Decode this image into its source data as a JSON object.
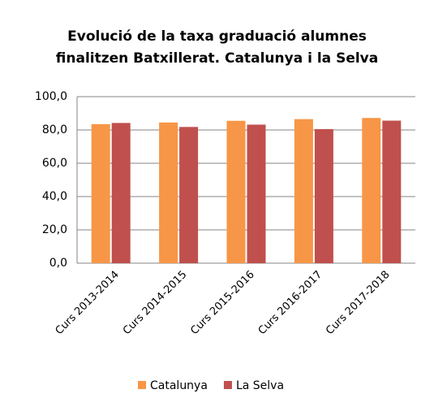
{
  "chart_data": {
    "type": "bar",
    "title": "Evolució de la taxa graduació alumnes finalitzen Batxillerat. Catalunya i la Selva",
    "categories": [
      "Curs 2013-2014",
      "Curs 2014-2015",
      "Curs 2015-2016",
      "Curs 2016-2017",
      "Curs 2017-2018"
    ],
    "series": [
      {
        "name": "Catalunya",
        "color": "#f79646",
        "values": [
          83.5,
          84.5,
          85.5,
          86.5,
          87.2
        ]
      },
      {
        "name": "La Selva",
        "color": "#c0504d",
        "values": [
          84.2,
          81.8,
          83.2,
          80.5,
          85.6
        ]
      }
    ],
    "ylim": [
      0,
      100
    ],
    "yticks": [
      {
        "value": 0,
        "label": "0,0"
      },
      {
        "value": 20,
        "label": "20,0"
      },
      {
        "value": 40,
        "label": "40,0"
      },
      {
        "value": 60,
        "label": "60,0"
      },
      {
        "value": 80,
        "label": "80,0"
      },
      {
        "value": 100,
        "label": "100,0"
      }
    ],
    "grid": true,
    "legend": "bottom"
  }
}
